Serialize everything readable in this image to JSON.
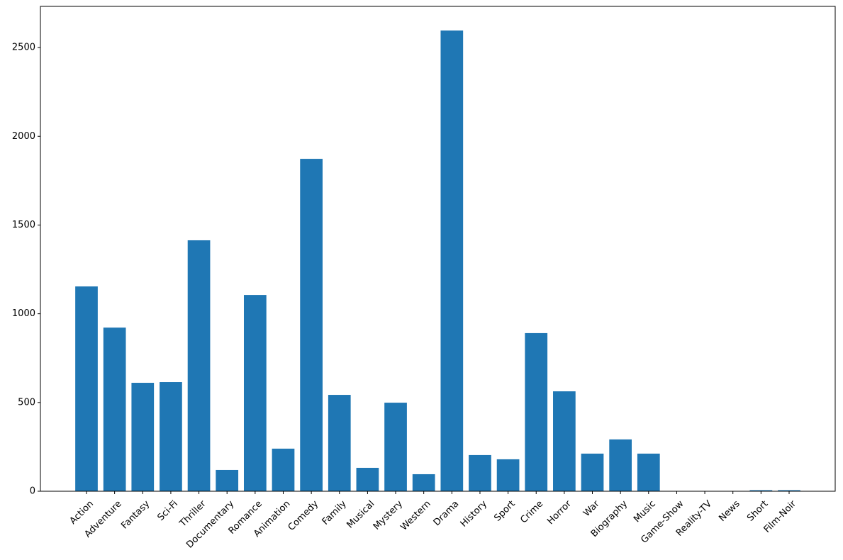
{
  "chart_data": {
    "type": "bar",
    "categories": [
      "Action",
      "Adventure",
      "Fantasy",
      "Sci-Fi",
      "Thriller",
      "Documentary",
      "Romance",
      "Animation",
      "Comedy",
      "Family",
      "Musical",
      "Mystery",
      "Western",
      "Drama",
      "History",
      "Sport",
      "Crime",
      "Horror",
      "War",
      "Biography",
      "Music",
      "Game-Show",
      "Reality-TV",
      "News",
      "Short",
      "Film-Noir"
    ],
    "values": [
      1154,
      922,
      611,
      615,
      1414,
      120,
      1106,
      240,
      1873,
      543,
      132,
      499,
      96,
      2596,
      204,
      180,
      891,
      563,
      212,
      292,
      212,
      2,
      2,
      1,
      6,
      6
    ],
    "color": "#1f77b4",
    "ylim": [
      0,
      2732
    ],
    "yticks": [
      0,
      500,
      1000,
      1500,
      2000,
      2500
    ],
    "grid": false
  }
}
